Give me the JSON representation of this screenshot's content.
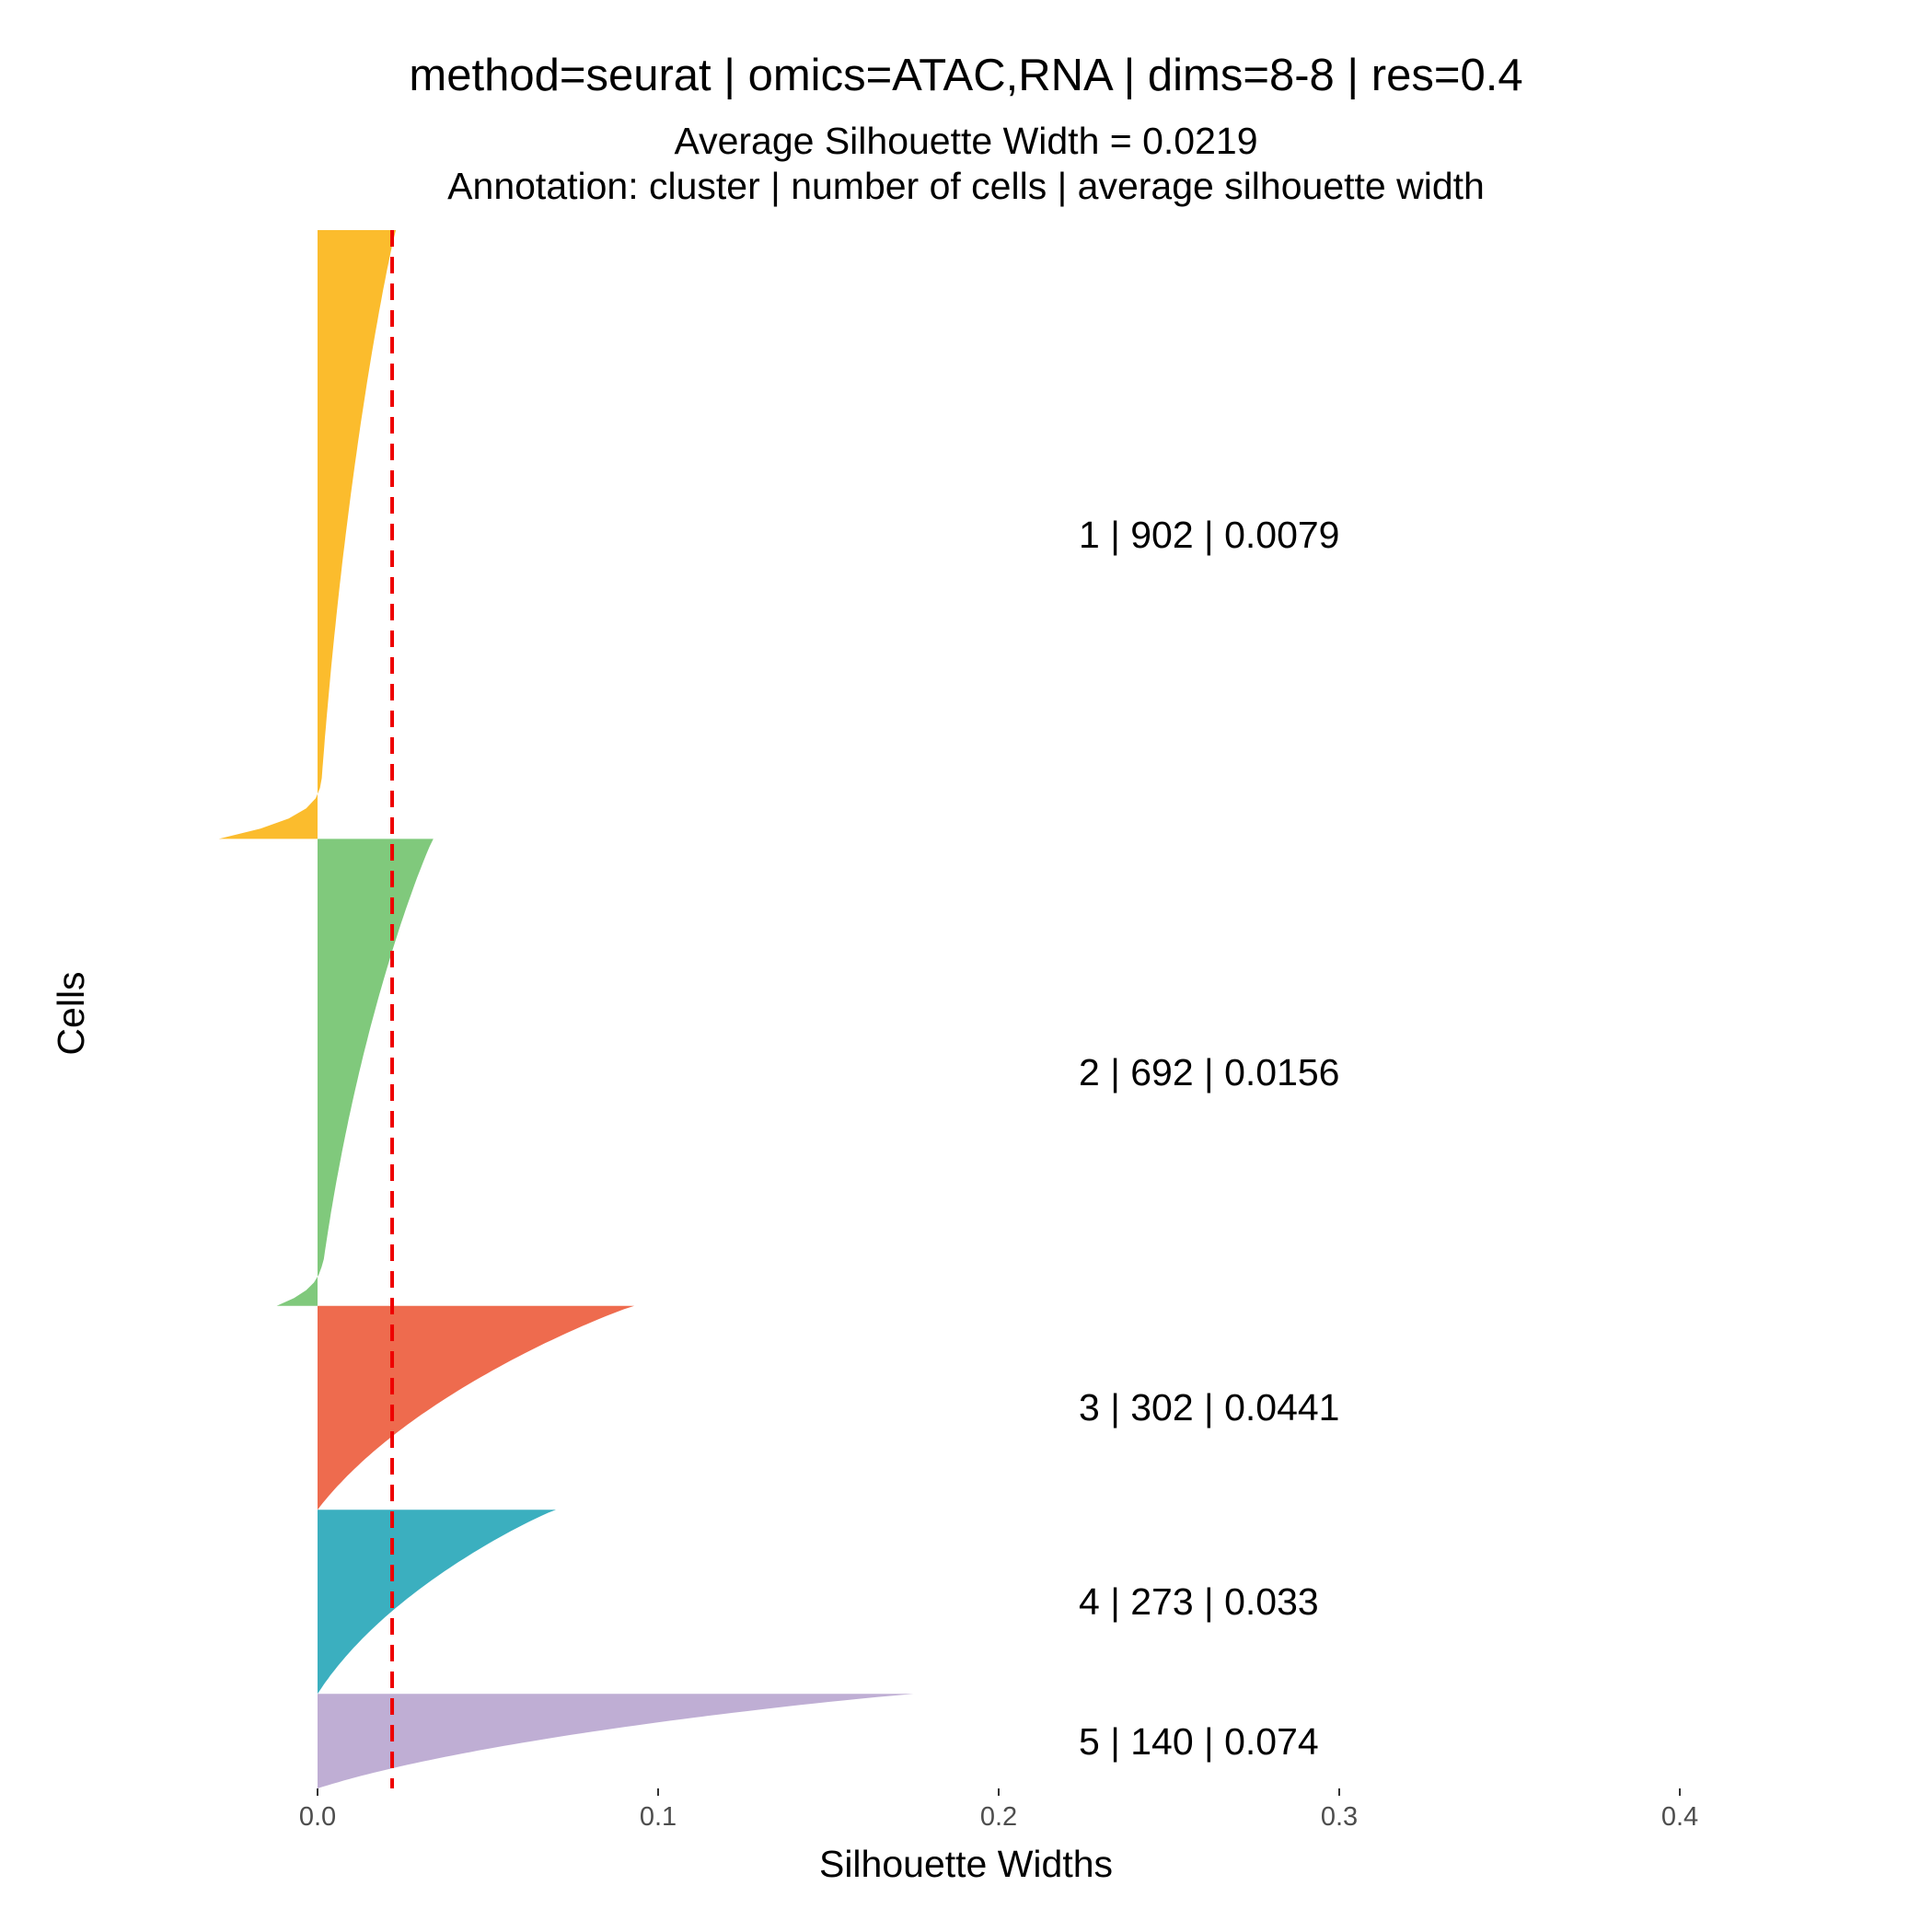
{
  "chart_data": {
    "type": "bar",
    "orientation": "horizontal",
    "title": "method=seurat | omics=ATAC,RNA | dims=8-8 | res=0.4",
    "subtitle_lines": [
      "Average Silhouette Width = 0.0219",
      "Annotation: cluster | number of cells | average silhouette width"
    ],
    "xlabel": "Silhouette Widths",
    "ylabel": "Cells",
    "xlim": [
      -0.03,
      0.4
    ],
    "x_ticks": [
      "0.0",
      "0.1",
      "0.2",
      "0.3",
      "0.4"
    ],
    "average_silhouette_width": 0.0219,
    "reference_line": {
      "x": 0.0219,
      "style": "dashed",
      "color": "#ee0000"
    },
    "grid": false,
    "legend": "none",
    "clusters": [
      {
        "cluster": "1",
        "cells": 902,
        "avg_width": 0.0079,
        "max_width": 0.023,
        "min_width": -0.029,
        "color": "#FBBC2D",
        "annotation": "1 | 902 | 0.0079"
      },
      {
        "cluster": "2",
        "cells": 692,
        "avg_width": 0.0156,
        "max_width": 0.034,
        "min_width": -0.012,
        "color": "#80C97C",
        "annotation": "2 | 692 | 0.0156"
      },
      {
        "cluster": "3",
        "cells": 302,
        "avg_width": 0.0441,
        "max_width": 0.093,
        "min_width": 0.0,
        "color": "#EE6B4E",
        "annotation": "3 | 302 | 0.0441"
      },
      {
        "cluster": "4",
        "cells": 273,
        "avg_width": 0.033,
        "max_width": 0.07,
        "min_width": 0.0,
        "color": "#3BAFBF",
        "annotation": "4 | 273 | 0.033"
      },
      {
        "cluster": "5",
        "cells": 140,
        "avg_width": 0.074,
        "max_width": 0.175,
        "min_width": 0.0,
        "color": "#BFAED4",
        "annotation": "5 | 140 | 0.074"
      }
    ]
  }
}
